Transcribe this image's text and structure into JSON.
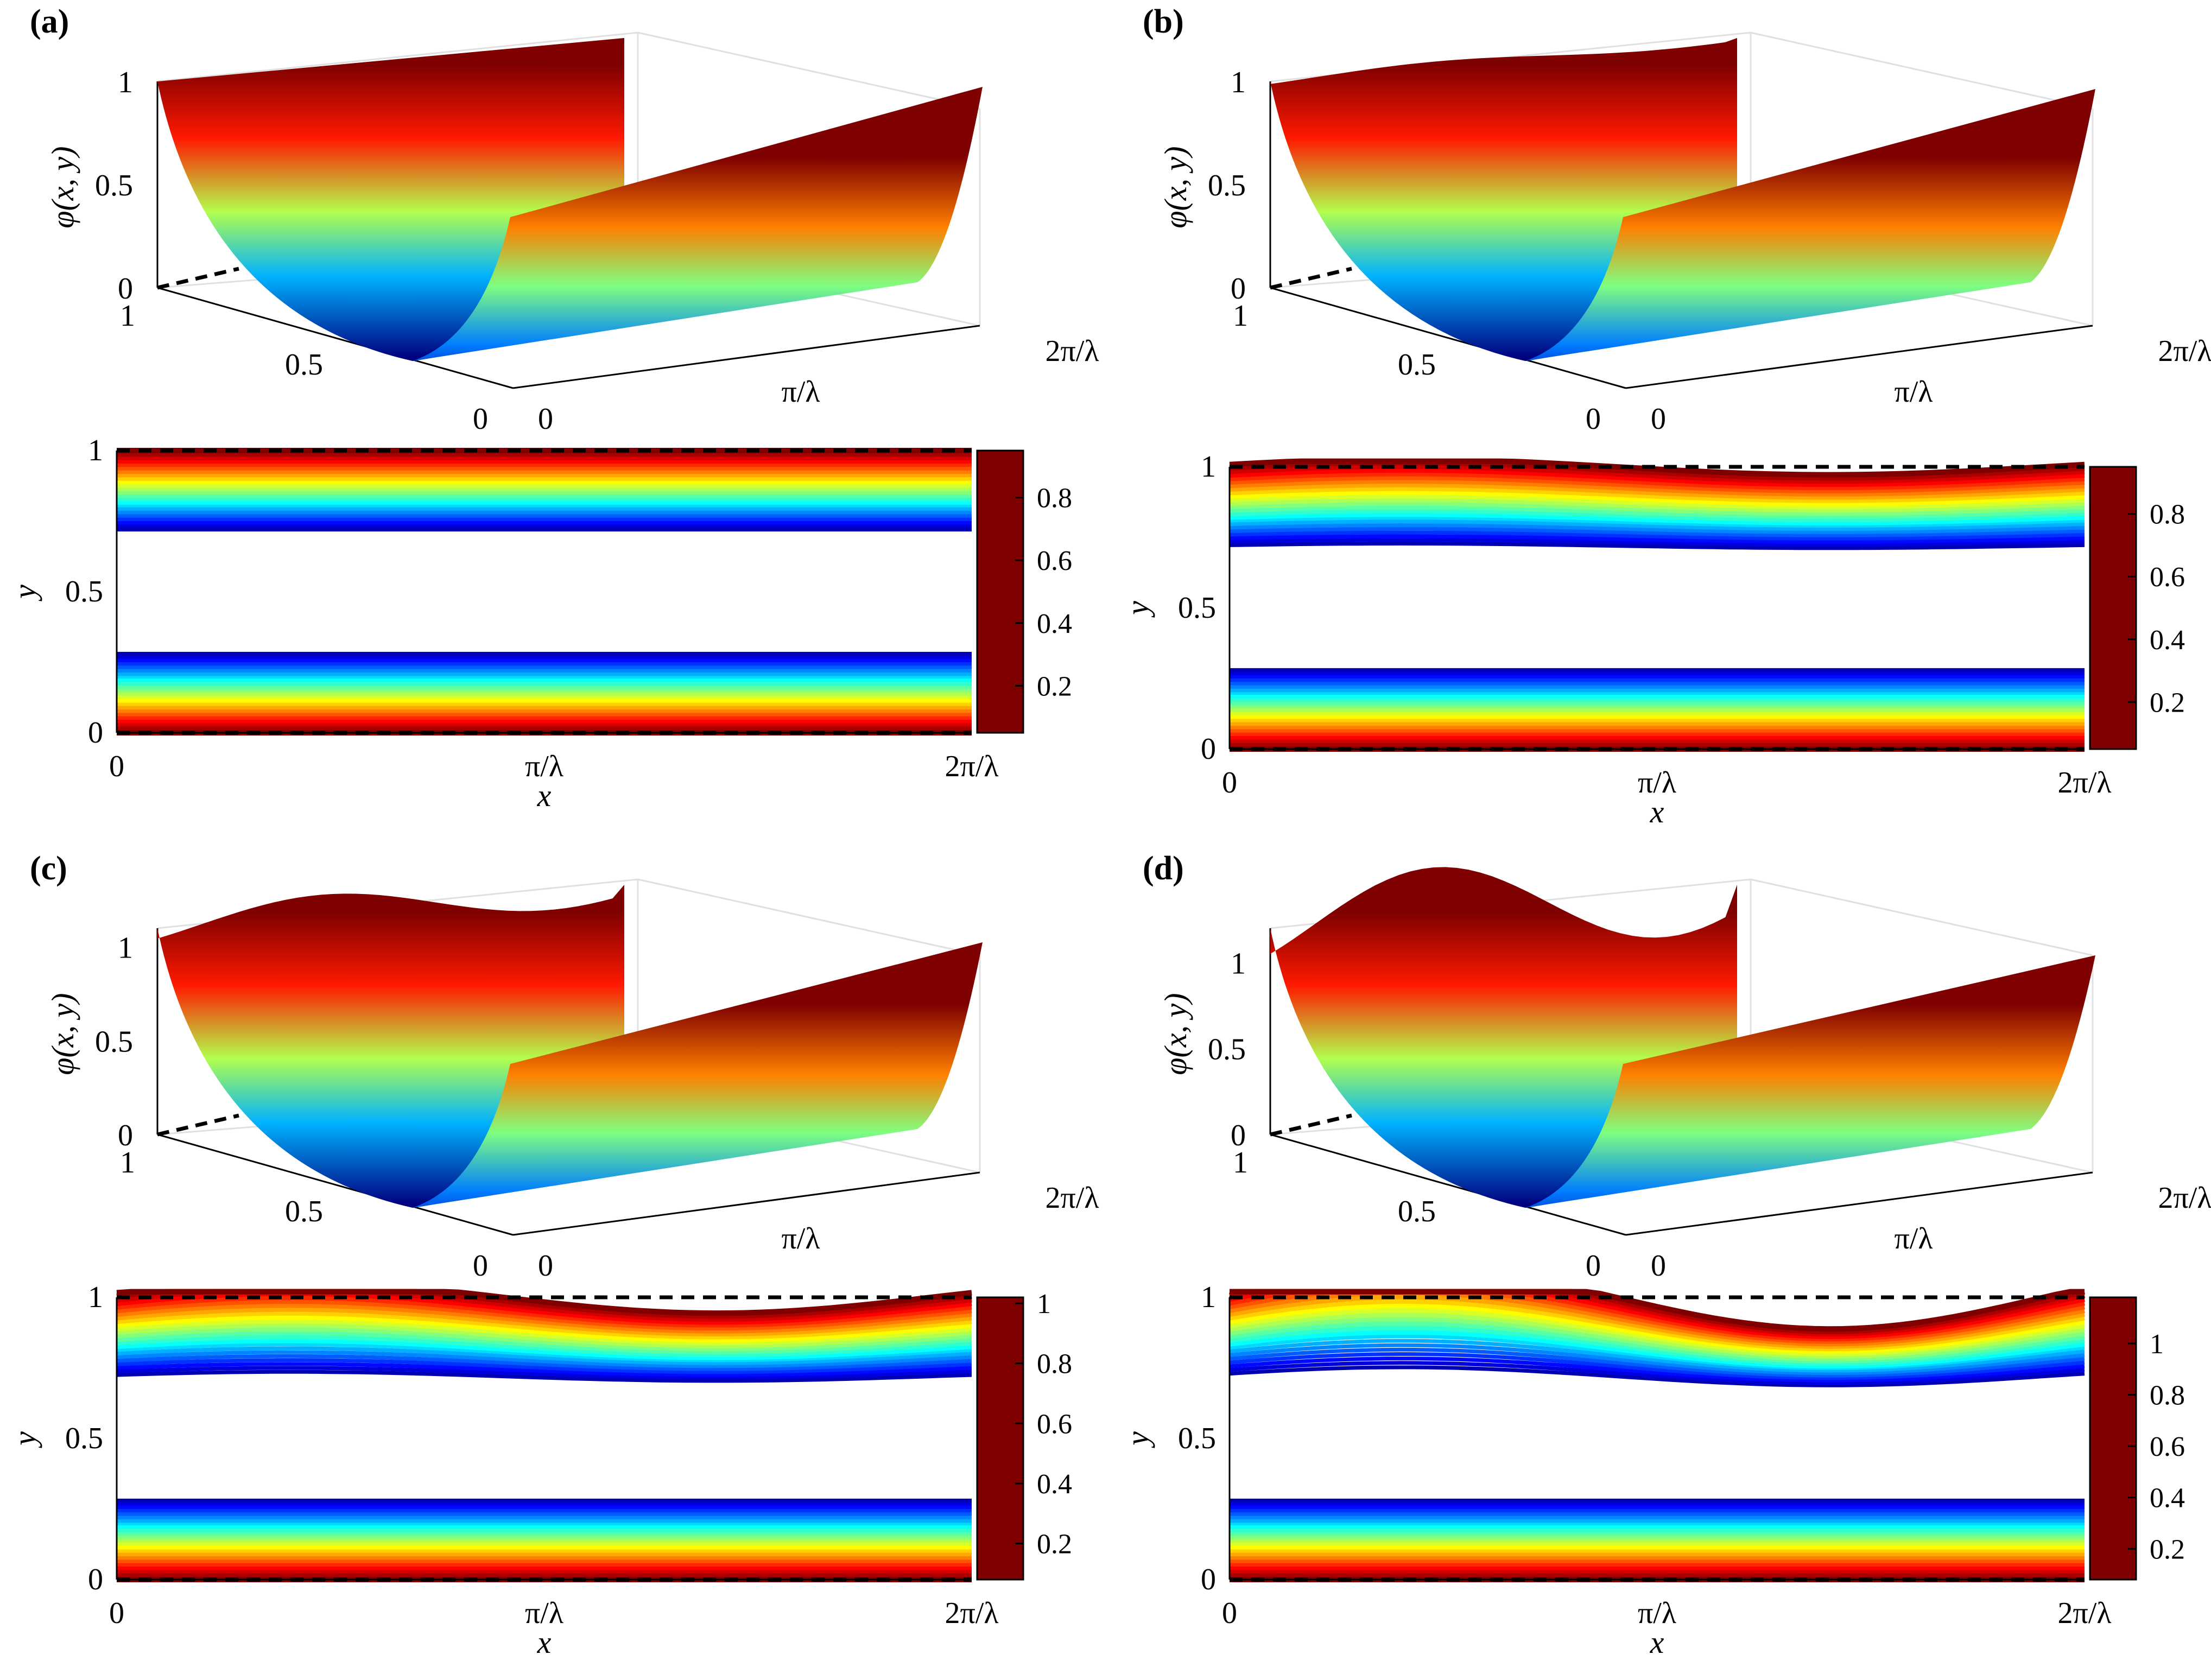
{
  "figure_title": "",
  "colorscale": [
    "#00007f",
    "#0000ff",
    "#007fff",
    "#00ffff",
    "#7fff7f",
    "#ffff00",
    "#ff7f00",
    "#ff0000",
    "#7f0000"
  ],
  "chart_data": [
    {
      "panel_label": "(a)",
      "type": "surface3d",
      "zlabel": "φ(x, y)",
      "z_ticks": [
        "0",
        "0.5",
        "1"
      ],
      "y_ticks": [
        "1",
        "0.5",
        "0"
      ],
      "x_ticks": [
        "0",
        "π/λ",
        "2π/λ"
      ],
      "zlim": [
        0,
        1
      ],
      "amplitude": 0.0,
      "description_values": {
        "surface_max": 1,
        "surface_min": 0
      }
    },
    {
      "panel_label": "(a)",
      "type": "contour",
      "xlabel": "x",
      "ylabel": "y",
      "x_ticks": [
        "0",
        "π/λ",
        "2π/λ"
      ],
      "y_ticks": [
        "0",
        "0.5",
        "1"
      ],
      "colorbar_ticks": [
        "0.2",
        "0.4",
        "0.6",
        "0.8"
      ],
      "colorbar_range": [
        0.05,
        0.95
      ],
      "amplitude": 0.0
    },
    {
      "panel_label": "(b)",
      "type": "surface3d",
      "zlabel": "φ(x, y)",
      "z_ticks": [
        "0",
        "0.5",
        "1"
      ],
      "y_ticks": [
        "1",
        "0.5",
        "0"
      ],
      "x_ticks": [
        "0",
        "π/λ",
        "2π/λ"
      ],
      "zlim": [
        0,
        1
      ],
      "amplitude": 0.02
    },
    {
      "panel_label": "(b)",
      "type": "contour",
      "xlabel": "x",
      "ylabel": "y",
      "x_ticks": [
        "0",
        "π/λ",
        "2π/λ"
      ],
      "y_ticks": [
        "0",
        "0.5",
        "1"
      ],
      "colorbar_ticks": [
        "0.2",
        "0.4",
        "0.6",
        "0.8"
      ],
      "colorbar_range": [
        0.05,
        0.95
      ],
      "amplitude": 0.01
    },
    {
      "panel_label": "(c)",
      "type": "surface3d",
      "zlabel": "φ(x, y)",
      "z_ticks": [
        "0",
        "0.5",
        "1"
      ],
      "y_ticks": [
        "1",
        "0.5",
        "0"
      ],
      "x_ticks": [
        "0",
        "π/λ",
        "2π/λ"
      ],
      "zlim": [
        0,
        1.1
      ],
      "amplitude": 0.08
    },
    {
      "panel_label": "(c)",
      "type": "contour",
      "xlabel": "x",
      "ylabel": "y",
      "x_ticks": [
        "0",
        "π/λ",
        "2π/λ"
      ],
      "y_ticks": [
        "0",
        "0.5",
        "1"
      ],
      "colorbar_ticks": [
        "0.2",
        "0.4",
        "0.6",
        "0.8",
        "1"
      ],
      "colorbar_range": [
        0.08,
        1.02
      ],
      "amplitude": 0.02
    },
    {
      "panel_label": "(d)",
      "type": "surface3d",
      "zlabel": "φ(x, y)",
      "z_ticks": [
        "0",
        "0.5",
        "1"
      ],
      "y_ticks": [
        "1",
        "0.5",
        "0"
      ],
      "x_ticks": [
        "0",
        "π/λ",
        "2π/λ"
      ],
      "zlim": [
        0,
        1.2
      ],
      "amplitude": 0.2
    },
    {
      "panel_label": "(d)",
      "type": "contour",
      "xlabel": "x",
      "ylabel": "y",
      "x_ticks": [
        "0",
        "π/λ",
        "2π/λ"
      ],
      "y_ticks": [
        "0",
        "0.5",
        "1"
      ],
      "colorbar_ticks": [
        "0.2",
        "0.4",
        "0.6",
        "0.8",
        "1"
      ],
      "colorbar_range": [
        0.08,
        1.18
      ],
      "amplitude": 0.04
    }
  ]
}
